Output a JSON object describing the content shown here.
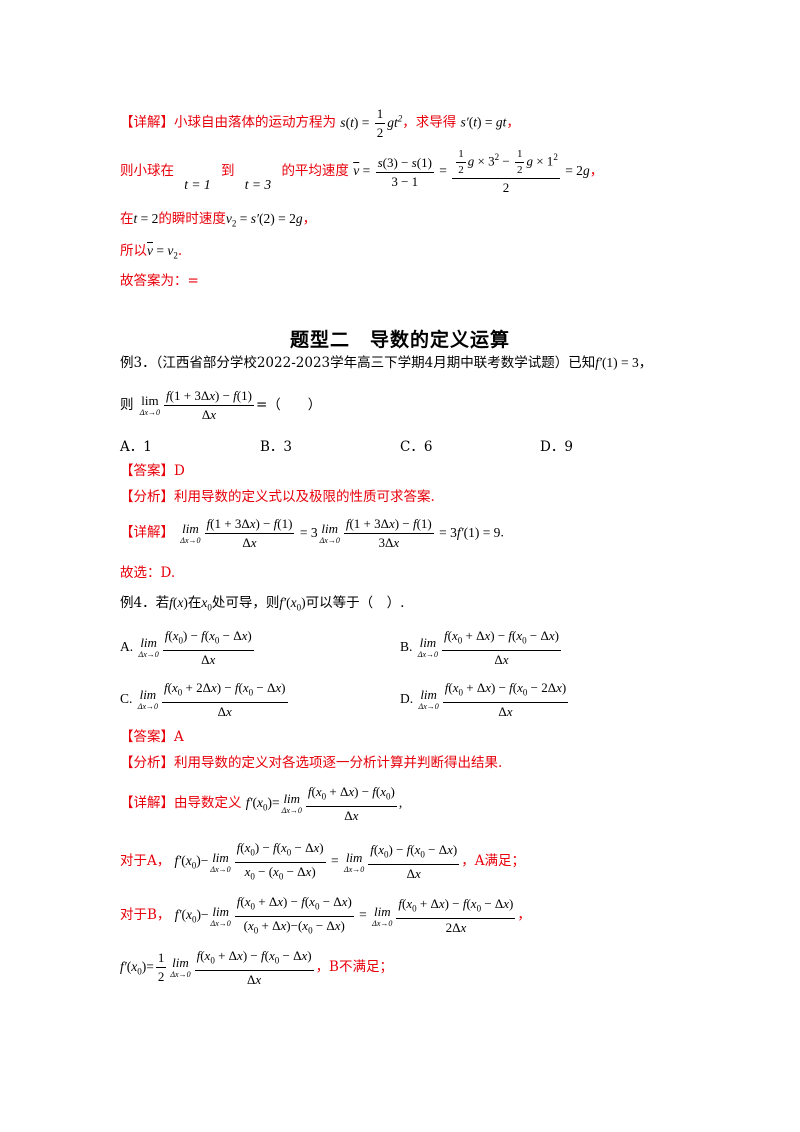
{
  "s1": {
    "tag": "【详解】",
    "text1": "小球自由落体的运动方程为",
    "text2": "，求导得",
    "text3": "，"
  },
  "s2": {
    "text1": "则小球在",
    "t1": "t = 1",
    "text2": "到",
    "t3": "t = 3",
    "text3": "的平均速度",
    "text4": "，"
  },
  "s3": {
    "text1": "在",
    "text2": "的瞬时速度",
    "text3": "，"
  },
  "s4": {
    "text1": "所以",
    "text2": "."
  },
  "s5": {
    "text": "故答案为：="
  },
  "heading": "题型二　导数的定义运算",
  "ex3": {
    "label": "例3．",
    "source": "（江西省部分学校2022-2023学年高三下学期4月期中联考数学试题）已知",
    "tail": "，",
    "q1": "则",
    "q2": "=（　　）",
    "options": [
      "A．1",
      "B．3",
      "C．6",
      "D．9"
    ],
    "answer_tag": "【答案】",
    "answer": "D",
    "analysis_tag": "【分析】",
    "analysis": "利用导数的定义式以及极限的性质可求答案.",
    "detail_tag": "【详解】",
    "choose": "故选：D."
  },
  "ex4": {
    "label": "例4．",
    "q1": "若",
    "q2": "在",
    "q3": "处可导，则",
    "q4": "可以等于（　）.",
    "opt_labels": [
      "A.",
      "B.",
      "C.",
      "D."
    ],
    "answer_tag": "【答案】",
    "answer": "A",
    "analysis_tag": "【分析】",
    "analysis": "利用导数的定义对各选项逐一分析计算并判断得出结果.",
    "detail_tag": "【详解】",
    "detail_text": "由导数定义",
    "forA": "对于A，",
    "forA_end": "，A满足；",
    "forB": "对于B，",
    "forB_end": "，",
    "B_not": "，B不满足；"
  }
}
